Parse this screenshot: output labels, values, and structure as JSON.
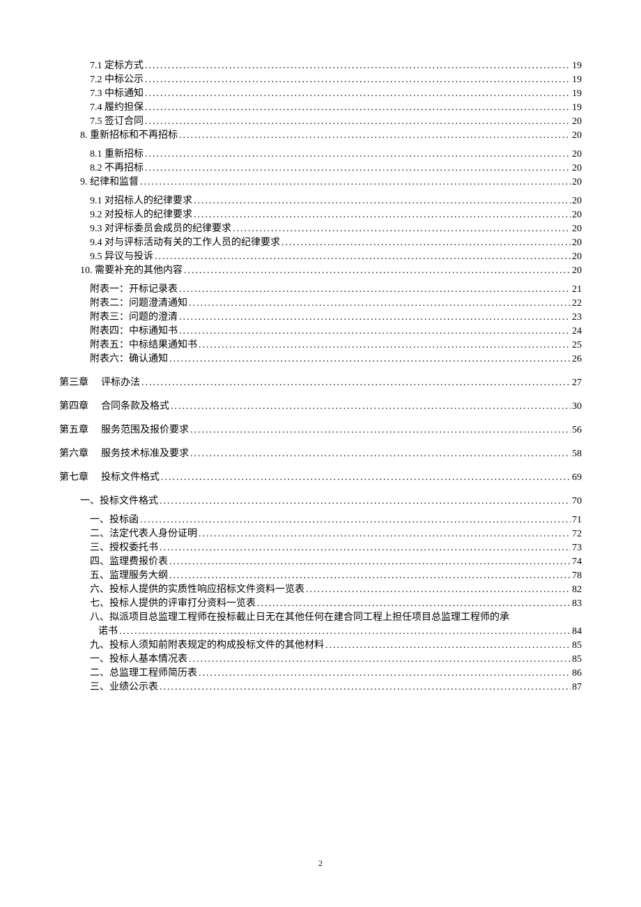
{
  "entries": [
    {
      "type": "item",
      "indent": 2,
      "label": "7.1 定标方式",
      "page": "19"
    },
    {
      "type": "item",
      "indent": 2,
      "label": "7.2 中标公示",
      "page": "19"
    },
    {
      "type": "item",
      "indent": 2,
      "label": "7.3 中标通知",
      "page": "19"
    },
    {
      "type": "item",
      "indent": 2,
      "label": "7.4 履约担保",
      "page": "19"
    },
    {
      "type": "item",
      "indent": 2,
      "label": "7.5 签订合同",
      "page": "20"
    },
    {
      "type": "item",
      "indent": 1,
      "label": "8. 重新招标和不再招标",
      "page": "20"
    },
    {
      "type": "gap"
    },
    {
      "type": "item",
      "indent": 2,
      "label": "8.1 重新招标",
      "page": "20"
    },
    {
      "type": "item",
      "indent": 2,
      "label": "8.2 不再招标",
      "page": "20"
    },
    {
      "type": "item",
      "indent": 1,
      "label": "9. 纪律和监督",
      "page": "20"
    },
    {
      "type": "gap"
    },
    {
      "type": "item",
      "indent": 2,
      "label": "9.1 对招标人的纪律要求",
      "page": "20"
    },
    {
      "type": "item",
      "indent": 2,
      "label": "9.2 对投标人的纪律要求",
      "page": "20"
    },
    {
      "type": "item",
      "indent": 2,
      "label": "9.3 对评标委员会成员的纪律要求",
      "page": "20"
    },
    {
      "type": "item",
      "indent": 2,
      "label": "9.4 对与评标活动有关的工作人员的纪律要求",
      "page": "20"
    },
    {
      "type": "item",
      "indent": 2,
      "label": "9.5 异议与投诉",
      "page": "20"
    },
    {
      "type": "item",
      "indent": 1,
      "label": "10. 需要补充的其他内容",
      "page": "20"
    },
    {
      "type": "gap"
    },
    {
      "type": "item",
      "indent": 2,
      "label": "附表一：开标记录表",
      "page": "21"
    },
    {
      "type": "item",
      "indent": 2,
      "label": "附表二：问题澄清通知",
      "page": "22"
    },
    {
      "type": "item",
      "indent": 2,
      "label": "附表三：问题的澄清",
      "page": "23"
    },
    {
      "type": "item",
      "indent": 2,
      "label": "附表四：中标通知书",
      "page": "24"
    },
    {
      "type": "item",
      "indent": 2,
      "label": "附表五：中标结果通知书",
      "page": "25"
    },
    {
      "type": "item",
      "indent": 2,
      "label": "附表六：确认通知",
      "page": "26"
    },
    {
      "type": "section-gap"
    },
    {
      "type": "chapter",
      "label": "第三章",
      "title": "评标办法",
      "page": "27"
    },
    {
      "type": "section-gap"
    },
    {
      "type": "chapter",
      "label": "第四章",
      "title": "合同条款及格式",
      "page": "30"
    },
    {
      "type": "section-gap"
    },
    {
      "type": "chapter",
      "label": "第五章",
      "title": "服务范围及报价要求",
      "page": "56"
    },
    {
      "type": "section-gap"
    },
    {
      "type": "chapter",
      "label": "第六章",
      "title": "服务技术标准及要求",
      "page": "58"
    },
    {
      "type": "section-gap"
    },
    {
      "type": "chapter",
      "label": "第七章",
      "title": "投标文件格式",
      "page": "69"
    },
    {
      "type": "section-gap"
    },
    {
      "type": "item",
      "indent": 1,
      "label": "一、投标文件格式",
      "page": "70"
    },
    {
      "type": "gap"
    },
    {
      "type": "item",
      "indent": 2,
      "label": "一、投标函",
      "page": "71"
    },
    {
      "type": "item",
      "indent": 2,
      "label": "二、法定代表人身份证明",
      "page": "72"
    },
    {
      "type": "item",
      "indent": 2,
      "label": "三、授权委托书",
      "page": "73"
    },
    {
      "type": "item",
      "indent": 2,
      "label": "四、监理费报价表",
      "page": "74"
    },
    {
      "type": "item",
      "indent": 2,
      "label": "五、监理服务大纲",
      "page": "78"
    },
    {
      "type": "item",
      "indent": 2,
      "label": "六、投标人提供的实质性响应招标文件资料一览表",
      "page": "82"
    },
    {
      "type": "item",
      "indent": 2,
      "label": "七、投标人提供的评审打分资料一览表",
      "page": "83"
    },
    {
      "type": "wrap",
      "indent": 2,
      "line1": "八、拟派项目总监理工程师在投标截止日无在其他任何在建合同工程上担任项目总监理工程师的承",
      "line2": "诺书",
      "page": "84"
    },
    {
      "type": "item",
      "indent": 2,
      "label": "九、投标人须知前附表规定的构成投标文件的其他材料",
      "page": "85"
    },
    {
      "type": "item",
      "indent": 2,
      "label": "一、投标人基本情况表",
      "page": "85"
    },
    {
      "type": "item",
      "indent": 2,
      "label": "二、总监理工程师简历表",
      "page": "86"
    },
    {
      "type": "item",
      "indent": 2,
      "label": "三、业绩公示表",
      "page": "87"
    }
  ],
  "pageNumber": "2"
}
